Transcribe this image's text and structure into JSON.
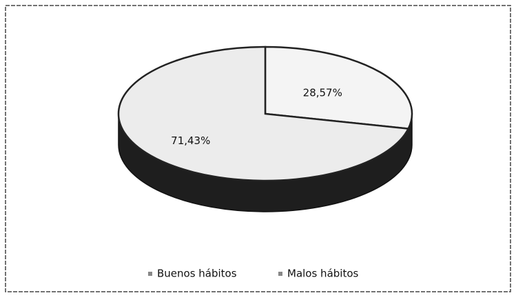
{
  "chart_data": {
    "type": "pie",
    "categories": [
      "Buenos hábitos",
      "Malos hábitos"
    ],
    "values": [
      28.57,
      71.43
    ],
    "value_labels": [
      "28,57%",
      "71,43%"
    ],
    "colors": [
      "#f4f4f4",
      "#ececec"
    ],
    "legend": "bottom"
  }
}
